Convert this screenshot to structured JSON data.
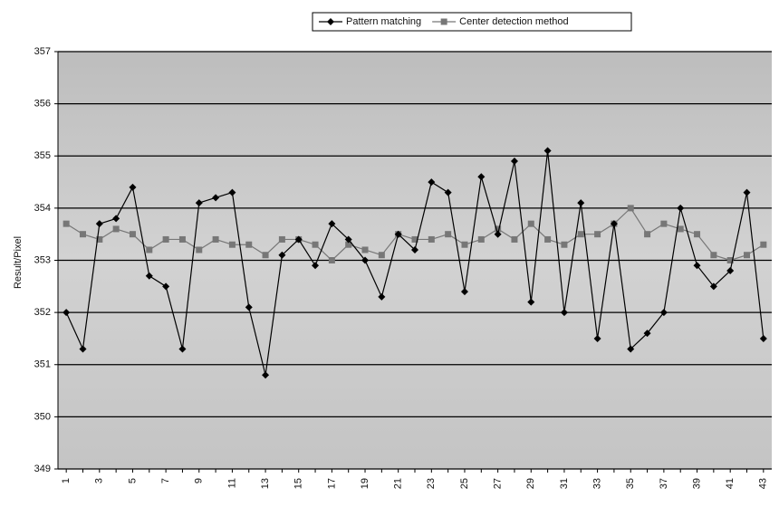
{
  "chart_data": {
    "type": "line",
    "y_label": "Result/Pixel",
    "categories": [
      "1",
      null,
      "3",
      null,
      "5",
      null,
      "7",
      null,
      "9",
      null,
      "11",
      null,
      "13",
      null,
      "15",
      null,
      "17",
      null,
      "19",
      null,
      "21",
      null,
      "23",
      null,
      "25",
      null,
      "27",
      null,
      "29",
      null,
      "31",
      null,
      "33",
      null,
      "35",
      null,
      "37",
      null,
      "39",
      null,
      "41",
      null,
      "43"
    ],
    "series": [
      {
        "name": "Pattern matching",
        "color": "#000000",
        "marker": "diamond",
        "values": [
          352.0,
          351.3,
          353.7,
          353.8,
          354.4,
          352.7,
          352.5,
          351.3,
          354.1,
          354.2,
          354.3,
          352.1,
          350.8,
          353.1,
          353.4,
          352.9,
          353.7,
          353.4,
          353.0,
          352.3,
          353.5,
          353.2,
          354.5,
          354.3,
          352.4,
          354.6,
          353.5,
          354.9,
          352.2,
          355.1,
          352.0,
          354.1,
          351.5,
          353.7,
          351.3,
          351.6,
          352.0,
          354.0,
          352.9,
          352.5,
          352.8,
          354.3,
          351.5
        ]
      },
      {
        "name": "Center detection method",
        "color": "#777777",
        "marker": "square",
        "values": [
          353.7,
          353.5,
          353.4,
          353.6,
          353.5,
          353.2,
          353.4,
          353.4,
          353.2,
          353.4,
          353.3,
          353.3,
          353.1,
          353.4,
          353.4,
          353.3,
          353.0,
          353.3,
          353.2,
          353.1,
          353.5,
          353.4,
          353.4,
          353.5,
          353.3,
          353.4,
          353.6,
          353.4,
          353.7,
          353.4,
          353.3,
          353.5,
          353.5,
          353.7,
          354.0,
          353.5,
          353.7,
          353.6,
          353.5,
          353.1,
          353.0,
          353.1,
          353.3
        ]
      }
    ],
    "ylim": [
      349,
      357
    ],
    "yticks": [
      349,
      350,
      351,
      352,
      353,
      354,
      355,
      356,
      357
    ],
    "grid": true
  }
}
